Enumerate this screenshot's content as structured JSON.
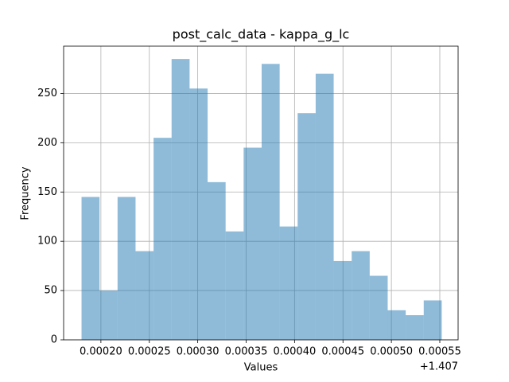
{
  "chart_data": {
    "type": "histogram",
    "title": "post_calc_data - kappa_g_lc",
    "x_label": "Values",
    "y_label": "Frequency",
    "x_offset_text": "+1.407",
    "bins": [
      1.40718,
      1.4071986,
      1.4072172,
      1.4072358,
      1.4072544,
      1.407273,
      1.4072916,
      1.4073102,
      1.4073288,
      1.4073474,
      1.407366,
      1.4073846,
      1.4074032,
      1.4074218,
      1.4074404,
      1.407459,
      1.4074776,
      1.4074962,
      1.4075148,
      1.4075334,
      1.407552
    ],
    "counts": [
      145,
      50,
      145,
      90,
      205,
      285,
      255,
      160,
      110,
      195,
      280,
      115,
      230,
      270,
      80,
      90,
      65,
      30,
      25,
      40
    ],
    "color": "#1f77b4",
    "alpha": 0.5,
    "xlim": [
      1.4071615,
      1.4075689
    ],
    "xticks": [
      {
        "value": 1.4072,
        "label": "0.00020"
      },
      {
        "value": 1.40725,
        "label": "0.00025"
      },
      {
        "value": 1.4073,
        "label": "0.00030"
      },
      {
        "value": 1.40735,
        "label": "0.00035"
      },
      {
        "value": 1.4074,
        "label": "0.00040"
      },
      {
        "value": 1.40745,
        "label": "0.00045"
      },
      {
        "value": 1.4075,
        "label": "0.00050"
      },
      {
        "value": 1.40755,
        "label": "0.00055"
      }
    ],
    "ylim": [
      0,
      298
    ],
    "yticks": [
      0,
      50,
      100,
      150,
      200,
      250
    ],
    "grid": true
  }
}
